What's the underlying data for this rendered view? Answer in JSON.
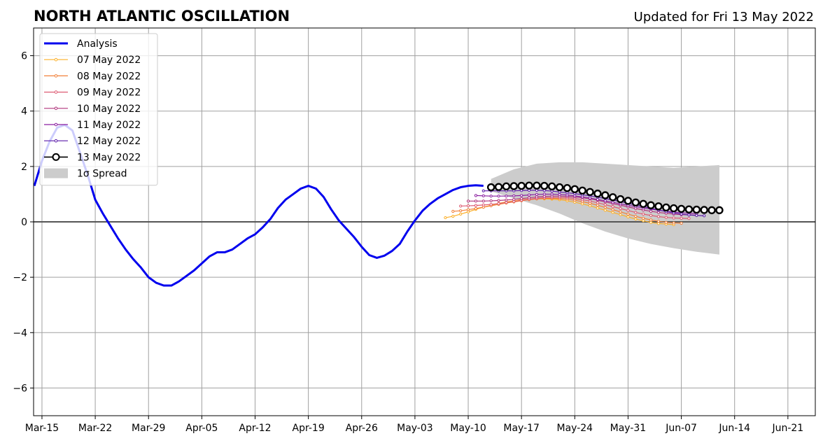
{
  "chart_data": {
    "type": "line",
    "title": "NORTH ATLANTIC OSCILLATION",
    "subtitle": "Updated for Fri 13 May 2022",
    "xlabel": "",
    "ylabel": "",
    "x_ticks": [
      "Mar-15",
      "Mar-22",
      "Mar-29",
      "Apr-05",
      "Apr-12",
      "Apr-19",
      "Apr-26",
      "May-03",
      "May-10",
      "May-17",
      "May-24",
      "May-31",
      "Jun-07",
      "Jun-14",
      "Jun-21"
    ],
    "x_tick_days": [
      0,
      7,
      14,
      21,
      28,
      35,
      42,
      49,
      56,
      63,
      70,
      77,
      84,
      91,
      98
    ],
    "xlim_days": [
      -1.1,
      101.6
    ],
    "y_ticks": [
      -6,
      -4,
      -2,
      0,
      2,
      4,
      6
    ],
    "y_tick_labels": [
      "−6",
      "−4",
      "−2",
      "0",
      "2",
      "4",
      "6"
    ],
    "ylim": [
      -7,
      7
    ],
    "grid": true,
    "legend_position": "top-left",
    "zero_line": true,
    "analysis": {
      "name": "Analysis",
      "color": "#0000ee",
      "x": [
        -1,
        0,
        1,
        2,
        3,
        4,
        5,
        6,
        7,
        8,
        9,
        10,
        11,
        12,
        13,
        14,
        15,
        16,
        17,
        18,
        19,
        20,
        21,
        22,
        23,
        24,
        25,
        26,
        27,
        28,
        29,
        30,
        31,
        32,
        33,
        34,
        35,
        36,
        37,
        38,
        39,
        40,
        41,
        42,
        43,
        44,
        45,
        46,
        47,
        48,
        49,
        50,
        51,
        52,
        53,
        54,
        55,
        56,
        57,
        58
      ],
      "y": [
        1.3,
        2.2,
        2.9,
        3.4,
        3.5,
        3.3,
        2.5,
        1.7,
        0.8,
        0.3,
        -0.15,
        -0.6,
        -1.0,
        -1.35,
        -1.65,
        -2.0,
        -2.2,
        -2.3,
        -2.3,
        -2.15,
        -1.95,
        -1.75,
        -1.5,
        -1.25,
        -1.1,
        -1.1,
        -1.0,
        -0.8,
        -0.6,
        -0.45,
        -0.2,
        0.1,
        0.5,
        0.8,
        1.0,
        1.2,
        1.3,
        1.2,
        0.9,
        0.45,
        0.05,
        -0.25,
        -0.55,
        -0.9,
        -1.2,
        -1.3,
        -1.22,
        -1.05,
        -0.8,
        -0.35,
        0.05,
        0.4,
        0.65,
        0.85,
        1.0,
        1.15,
        1.25,
        1.3,
        1.32,
        1.3
      ]
    },
    "forecasts": [
      {
        "name": "07 May 2022",
        "color": "#fbb02a",
        "x": [
          53,
          54,
          55,
          56,
          57,
          58,
          59,
          60,
          61,
          62,
          63,
          64,
          65,
          66,
          67,
          68,
          69,
          70,
          71,
          72,
          73,
          74,
          75,
          76,
          77,
          78,
          79,
          80,
          81,
          82,
          83
        ],
        "y": [
          0.15,
          0.2,
          0.28,
          0.36,
          0.45,
          0.53,
          0.6,
          0.67,
          0.72,
          0.76,
          0.8,
          0.82,
          0.83,
          0.83,
          0.82,
          0.8,
          0.76,
          0.71,
          0.65,
          0.58,
          0.5,
          0.42,
          0.34,
          0.26,
          0.18,
          0.1,
          0.04,
          -0.02,
          -0.06,
          -0.08,
          -0.1
        ]
      },
      {
        "name": "08 May 2022",
        "color": "#f1803a",
        "x": [
          54,
          55,
          56,
          57,
          58,
          59,
          60,
          61,
          62,
          63,
          64,
          65,
          66,
          67,
          68,
          69,
          70,
          71,
          72,
          73,
          74,
          75,
          76,
          77,
          78,
          79,
          80,
          81,
          82,
          83,
          84
        ],
        "y": [
          0.38,
          0.4,
          0.44,
          0.48,
          0.53,
          0.58,
          0.63,
          0.68,
          0.72,
          0.76,
          0.8,
          0.83,
          0.85,
          0.85,
          0.84,
          0.82,
          0.78,
          0.73,
          0.67,
          0.6,
          0.52,
          0.44,
          0.36,
          0.28,
          0.2,
          0.13,
          0.07,
          0.02,
          -0.02,
          -0.04,
          -0.05
        ]
      },
      {
        "name": "09 May 2022",
        "color": "#dd5a72",
        "x": [
          55,
          56,
          57,
          58,
          59,
          60,
          61,
          62,
          63,
          64,
          65,
          66,
          67,
          68,
          69,
          70,
          71,
          72,
          73,
          74,
          75,
          76,
          77,
          78,
          79,
          80,
          81,
          82,
          83,
          84,
          85
        ],
        "y": [
          0.57,
          0.58,
          0.59,
          0.61,
          0.63,
          0.66,
          0.7,
          0.74,
          0.78,
          0.82,
          0.85,
          0.87,
          0.88,
          0.88,
          0.87,
          0.84,
          0.8,
          0.75,
          0.69,
          0.62,
          0.55,
          0.48,
          0.41,
          0.34,
          0.28,
          0.23,
          0.19,
          0.16,
          0.14,
          0.13,
          0.12
        ]
      },
      {
        "name": "10 May 2022",
        "color": "#b0347c",
        "x": [
          56,
          57,
          58,
          59,
          60,
          61,
          62,
          63,
          64,
          65,
          66,
          67,
          68,
          69,
          70,
          71,
          72,
          73,
          74,
          75,
          76,
          77,
          78,
          79,
          80,
          81,
          82,
          83,
          84,
          85,
          86
        ],
        "y": [
          0.75,
          0.75,
          0.75,
          0.76,
          0.77,
          0.79,
          0.81,
          0.84,
          0.87,
          0.9,
          0.92,
          0.93,
          0.93,
          0.92,
          0.9,
          0.87,
          0.83,
          0.78,
          0.72,
          0.66,
          0.6,
          0.54,
          0.48,
          0.43,
          0.38,
          0.34,
          0.31,
          0.28,
          0.26,
          0.25,
          0.24
        ]
      },
      {
        "name": "11 May 2022",
        "color": "#8a1fa0",
        "x": [
          57,
          58,
          59,
          60,
          61,
          62,
          63,
          64,
          65,
          66,
          67,
          68,
          69,
          70,
          71,
          72,
          73,
          74,
          75,
          76,
          77,
          78,
          79,
          80,
          81,
          82,
          83,
          84,
          85,
          86
        ],
        "y": [
          0.95,
          0.94,
          0.93,
          0.93,
          0.93,
          0.94,
          0.95,
          0.97,
          0.99,
          1.0,
          1.0,
          0.99,
          0.97,
          0.94,
          0.9,
          0.86,
          0.81,
          0.76,
          0.71,
          0.65,
          0.6,
          0.55,
          0.5,
          0.46,
          0.42,
          0.38,
          0.35,
          0.33,
          0.31,
          0.3
        ]
      },
      {
        "name": "12 May 2022",
        "color": "#5a1aa8",
        "x": [
          58,
          59,
          60,
          61,
          62,
          63,
          64,
          65,
          66,
          67,
          68,
          69,
          70,
          71,
          72,
          73,
          74,
          75,
          76,
          77,
          78,
          79,
          80,
          81,
          82,
          83,
          84,
          85,
          86,
          87
        ],
        "y": [
          1.12,
          1.12,
          1.12,
          1.12,
          1.12,
          1.13,
          1.14,
          1.14,
          1.13,
          1.11,
          1.08,
          1.05,
          1.02,
          0.98,
          0.94,
          0.89,
          0.84,
          0.79,
          0.73,
          0.67,
          0.61,
          0.55,
          0.49,
          0.43,
          0.37,
          0.32,
          0.28,
          0.25,
          0.23,
          0.22
        ]
      },
      {
        "name": "13 May 2022",
        "color": "#000000",
        "x": [
          59,
          60,
          61,
          62,
          63,
          64,
          65,
          66,
          67,
          68,
          69,
          70,
          71,
          72,
          73,
          74,
          75,
          76,
          77,
          78,
          79,
          80,
          81,
          82,
          83,
          84,
          85,
          86,
          87,
          88,
          89
        ],
        "y": [
          1.25,
          1.26,
          1.28,
          1.29,
          1.3,
          1.31,
          1.31,
          1.3,
          1.28,
          1.25,
          1.22,
          1.18,
          1.13,
          1.08,
          1.02,
          0.96,
          0.89,
          0.82,
          0.76,
          0.7,
          0.65,
          0.6,
          0.56,
          0.52,
          0.49,
          0.47,
          0.45,
          0.44,
          0.43,
          0.42,
          0.42
        ]
      }
    ],
    "spread": {
      "name": "1σ Spread",
      "color": "#cccccc",
      "x": [
        59,
        62,
        65,
        68,
        71,
        74,
        77,
        80,
        83,
        86,
        89
      ],
      "upper": [
        1.55,
        1.9,
        2.1,
        2.15,
        2.15,
        2.1,
        2.05,
        2.0,
        1.95,
        2.0,
        2.05
      ],
      "lower": [
        1.1,
        0.85,
        0.6,
        0.3,
        -0.05,
        -0.35,
        -0.6,
        -0.8,
        -0.95,
        -1.08,
        -1.18
      ]
    }
  }
}
